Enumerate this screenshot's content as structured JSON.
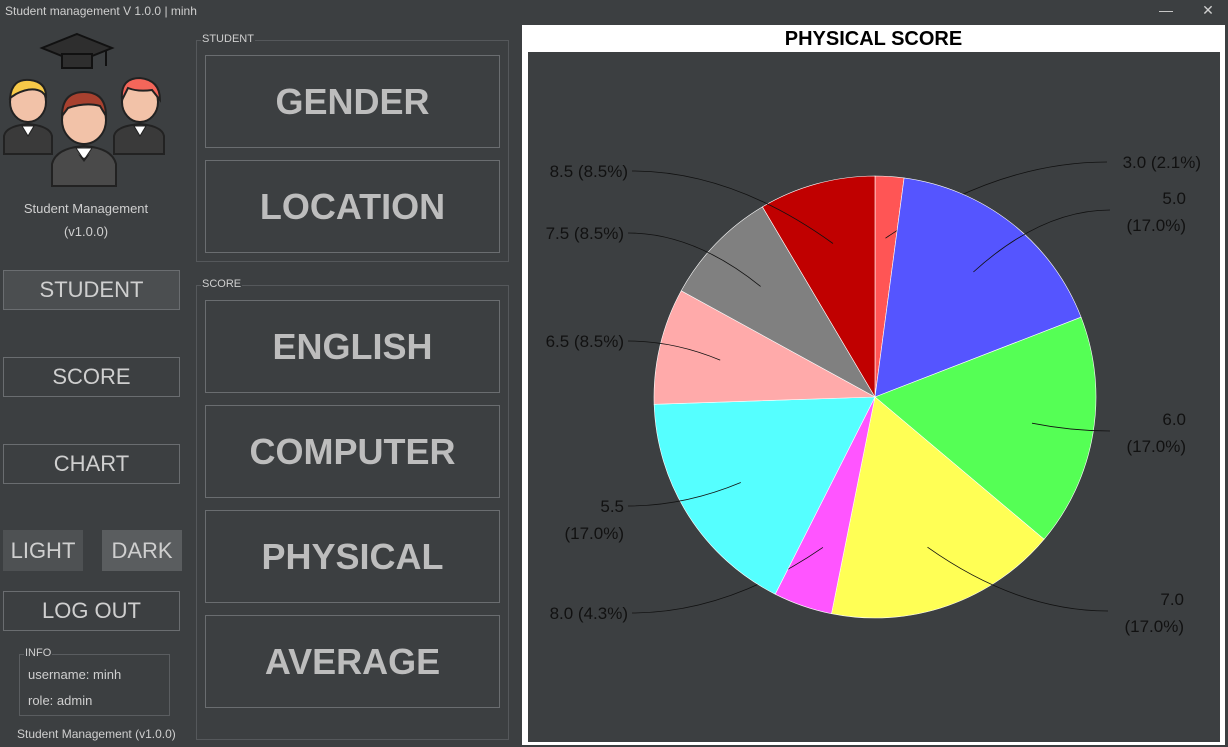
{
  "window": {
    "title": "Student management V 1.0.0 | minh",
    "minimize_icon": "minimize-icon",
    "close_icon": "close-icon"
  },
  "sidebar": {
    "logo_icon": "students-graduation-icon",
    "app_name": "Student Management",
    "version": "(v1.0.0)",
    "nav": {
      "student": "STUDENT",
      "score": "SCORE",
      "chart": "CHART"
    },
    "theme": {
      "light": "LIGHT",
      "dark": "DARK"
    },
    "logout": "LOG OUT",
    "info": {
      "legend": "INFO",
      "username": "username: minh",
      "role": "role: admin"
    },
    "footer": "Student Management (v1.0.0)"
  },
  "student_group": {
    "legend": "STUDENT",
    "gender": "GENDER",
    "location": "LOCATION"
  },
  "score_group": {
    "legend": "SCORE",
    "english": "ENGLISH",
    "computer": "COMPUTER",
    "physical": "PHYSICAL",
    "average": "AVERAGE"
  },
  "chart_data": {
    "type": "pie",
    "title": "PHYSICAL SCORE",
    "slices": [
      {
        "label": "3.0",
        "percent": 2.1,
        "color": "#ff5555"
      },
      {
        "label": "5.0",
        "percent": 17.0,
        "color": "#5555ff"
      },
      {
        "label": "6.0",
        "percent": 17.0,
        "color": "#55ff55"
      },
      {
        "label": "7.0",
        "percent": 17.0,
        "color": "#ffff55"
      },
      {
        "label": "8.0",
        "percent": 4.3,
        "color": "#ff55ff"
      },
      {
        "label": "5.5",
        "percent": 17.0,
        "color": "#55ffff"
      },
      {
        "label": "6.5",
        "percent": 8.5,
        "color": "#ffaaaa"
      },
      {
        "label": "7.5",
        "percent": 8.5,
        "color": "#808080"
      },
      {
        "label": "8.5",
        "percent": 8.5,
        "color": "#c00000"
      }
    ],
    "labels_text": [
      "3.0 (2.1%)",
      "5.0|(17.0%)",
      "6.0|(17.0%)",
      "7.0|(17.0%)",
      "8.0 (4.3%)",
      "5.5|(17.0%)",
      "6.5 (8.5%)",
      "7.5 (8.5%)",
      "8.5 (8.5%)"
    ],
    "background": "#3c3f41"
  }
}
